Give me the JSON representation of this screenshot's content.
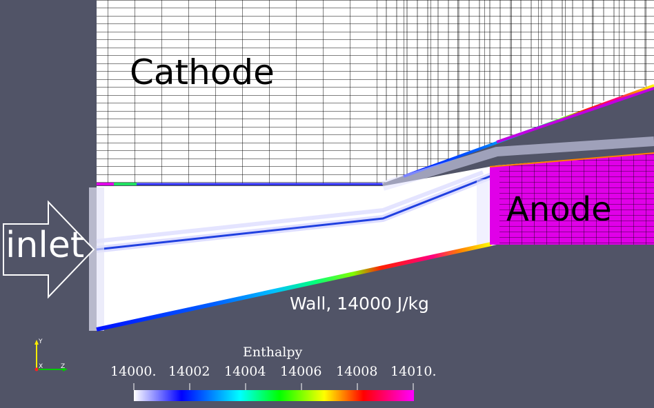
{
  "labels": {
    "cathode": "Cathode",
    "anode": "Anode",
    "inlet": "inlet",
    "wall": "Wall, 14000 J/kg"
  },
  "legend": {
    "title": "Enthalpy",
    "ticks": [
      "14000.",
      "14002",
      "14004",
      "14006",
      "14008",
      "14010."
    ],
    "colormap": [
      "#ffffff",
      "#0000ff",
      "#00ffff",
      "#00ff00",
      "#ffff00",
      "#ff0000",
      "#ff00ff"
    ]
  },
  "axes": {
    "y": "Y",
    "x": "X",
    "z": "Z"
  },
  "colors": {
    "background": "#515467",
    "mesh_lines": "#000000",
    "anode_fill": "#e000e8",
    "flow_region": "#ffffff"
  }
}
